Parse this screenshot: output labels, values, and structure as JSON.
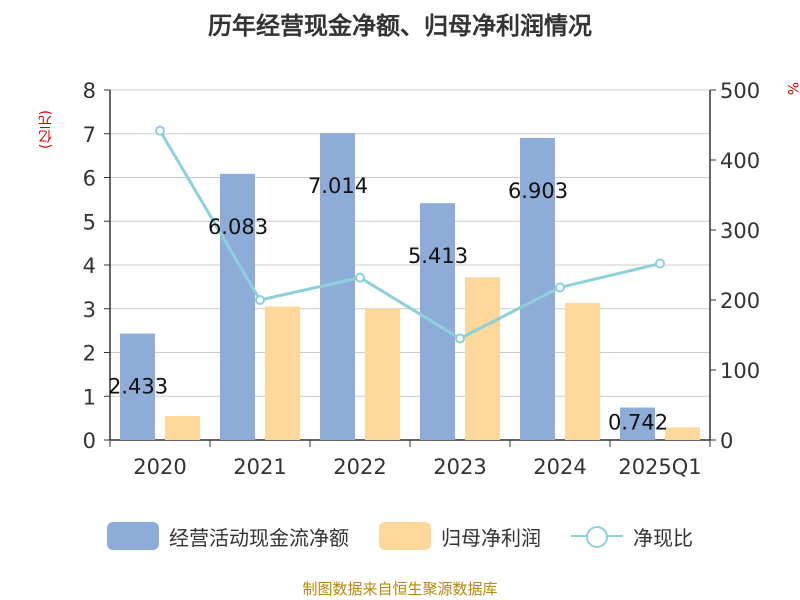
{
  "title": "历年经营现金净额、归母净利润情况",
  "y_left_unit": "(亿元)",
  "y_right_unit": "%",
  "source": "制图数据来自恒生聚源数据库",
  "colors": {
    "cash_flow": "#8eacd8",
    "net_profit": "#fdd89a",
    "ratio": "#8cd1da",
    "axis": "#333333",
    "grid": "#cccccc",
    "unit": "#d40000"
  },
  "legend": {
    "cash_flow": "经营活动现金流净额",
    "net_profit": "归母净利润",
    "ratio": "净现比"
  },
  "chart_data": {
    "type": "bar",
    "categories": [
      "2020",
      "2021",
      "2022",
      "2023",
      "2024",
      "2025Q1"
    ],
    "series": [
      {
        "name": "经营活动现金流净额",
        "type": "bar",
        "axis": "left",
        "values": [
          2.433,
          6.083,
          7.014,
          5.413,
          6.903,
          0.742
        ],
        "labels": [
          "2.433",
          "6.083",
          "7.014",
          "5.413",
          "6.903",
          "0.742"
        ]
      },
      {
        "name": "归母净利润",
        "type": "bar",
        "axis": "left",
        "values": [
          0.55,
          3.05,
          3.0,
          3.72,
          3.13,
          0.29
        ]
      },
      {
        "name": "净现比",
        "type": "line",
        "axis": "right",
        "values": [
          442,
          200,
          232,
          145,
          218,
          252
        ]
      }
    ],
    "y_left": {
      "min": 0,
      "max": 8,
      "ticks": [
        "0",
        "1",
        "2",
        "3",
        "4",
        "5",
        "6",
        "7",
        "8"
      ]
    },
    "y_right": {
      "min": 0,
      "max": 500,
      "ticks": [
        "0",
        "100",
        "200",
        "300",
        "400",
        "500"
      ]
    },
    "grid": true,
    "legend_position": "bottom"
  }
}
